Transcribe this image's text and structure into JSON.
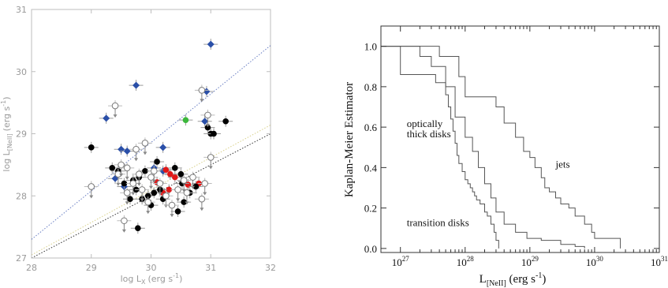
{
  "chart_data": [
    {
      "type": "scatter",
      "title": "",
      "xlabel_main": "log L",
      "xlabel_sub": "X",
      "xlabel_unit": "(erg s",
      "xlabel_exp": "-1",
      "xlabel_close": ")",
      "ylabel_main": "log L",
      "ylabel_sub": "[NeII]",
      "ylabel_unit": "(erg s",
      "ylabel_exp": "-1",
      "ylabel_close": ")",
      "xlim": [
        28,
        32
      ],
      "ylim": [
        27,
        31
      ],
      "x_ticks": [
        "28",
        "29",
        "30",
        "31",
        "32"
      ],
      "y_ticks": [
        "27",
        "28",
        "29",
        "30",
        "31"
      ],
      "colors": {
        "blue": "#2a4fa8",
        "red": "#e01818",
        "green": "#3cb83c",
        "black": "#000000",
        "open": "#7a7a7a",
        "fit_blue": "#6a7fc4",
        "fit_yellow": "#d8d08a",
        "fit_black": "#333333"
      },
      "fit_lines": [
        {
          "color": "fit_blue",
          "x": [
            28,
            32
          ],
          "y": [
            27.3,
            30.42
          ]
        },
        {
          "color": "fit_yellow",
          "x": [
            28,
            32
          ],
          "y": [
            27.05,
            29.14
          ]
        },
        {
          "color": "fit_black",
          "x": [
            28,
            32
          ],
          "y": [
            27.0,
            29.0
          ]
        }
      ],
      "series": [
        {
          "marker": "diamond",
          "color": "blue",
          "x": [
            31.0,
            29.75,
            29.25,
            29.5,
            29.6,
            30.2,
            29.4,
            29.55,
            30.05,
            30.2,
            30.9,
            30.93
          ],
          "y": [
            30.44,
            29.78,
            29.25,
            28.75,
            28.72,
            28.78,
            28.28,
            28.15,
            28.45,
            28.4,
            29.2,
            29.68
          ]
        },
        {
          "marker": "circle",
          "color": "green",
          "x": [
            30.58
          ],
          "y": [
            29.22
          ]
        },
        {
          "marker": "circle",
          "color": "red",
          "x": [
            30.1,
            30.25,
            30.32,
            30.3,
            30.2,
            30.4,
            30.62,
            30.8
          ],
          "y": [
            28.22,
            28.42,
            28.35,
            28.1,
            28.05,
            28.3,
            28.18,
            28.2
          ]
        },
        {
          "marker": "circle",
          "color": "black",
          "x": [
            29.0,
            29.35,
            29.45,
            29.55,
            29.65,
            29.7,
            29.75,
            29.8,
            29.85,
            29.9,
            29.95,
            30.0,
            30.05,
            30.1,
            30.15,
            30.2,
            30.4,
            30.5,
            30.52,
            30.55,
            30.65,
            30.75,
            30.95,
            31.0,
            31.05,
            31.25,
            29.78,
            30.45
          ],
          "y": [
            28.78,
            28.45,
            28.4,
            28.2,
            27.95,
            28.25,
            28.1,
            28.3,
            27.95,
            28.4,
            28.0,
            27.85,
            28.05,
            28.55,
            28.1,
            27.95,
            28.45,
            28.35,
            28.2,
            27.9,
            28.05,
            28.15,
            29.1,
            29.0,
            29.0,
            29.2,
            27.48,
            27.75
          ]
        },
        {
          "marker": "open-circle",
          "color": "open",
          "x": [
            29.0,
            29.45,
            29.55,
            29.6,
            29.7,
            29.8,
            29.85,
            29.9,
            29.95,
            30.05,
            30.15,
            30.25,
            30.35,
            30.45,
            30.55,
            30.7,
            30.85,
            30.95,
            31.0,
            29.4,
            29.5,
            29.6,
            29.75,
            30.0,
            30.6,
            30.85,
            30.9
          ],
          "y": [
            28.15,
            28.35,
            27.6,
            28.05,
            28.2,
            28.35,
            28.1,
            28.85,
            27.9,
            28.4,
            28.2,
            28.0,
            27.85,
            28.1,
            28.25,
            28.3,
            27.95,
            29.3,
            28.62,
            29.45,
            28.5,
            28.45,
            28.75,
            28.3,
            28.05,
            29.7,
            28.2
          ]
        }
      ]
    },
    {
      "type": "line",
      "title": "",
      "ylabel": "Kaplan-Meier Estimator",
      "xlabel_main": "L",
      "xlabel_sub": "[NeII]",
      "xlabel_unit": " (erg s",
      "xlabel_exp": "-1",
      "xlabel_close": ")",
      "x_scale": "log",
      "xlim": [
        5e+26,
        1e+31
      ],
      "ylim": [
        -0.02,
        1.1
      ],
      "x_ticks": [
        {
          "base": "10",
          "exp": "27",
          "value": 1e+27
        },
        {
          "base": "10",
          "exp": "28",
          "value": 1e+28
        },
        {
          "base": "10",
          "exp": "29",
          "value": 1e+29
        },
        {
          "base": "10",
          "exp": "30",
          "value": 1e+30
        },
        {
          "base": "10",
          "exp": "31",
          "value": 1e+31
        }
      ],
      "y_ticks": [
        "0.0",
        "0.2",
        "0.4",
        "0.6",
        "0.8",
        "1.0"
      ],
      "y_tick_values": [
        0,
        0.2,
        0.4,
        0.6,
        0.8,
        1.0
      ],
      "annotations": [
        {
          "text": "optically",
          "x": 1e+27,
          "y": 0.6
        },
        {
          "text": "thick disks",
          "x": 1e+27,
          "y": 0.55
        },
        {
          "text": "jets",
          "x": 2e+29,
          "y": 0.4
        },
        {
          "text": "transition disks",
          "x": 1e+27,
          "y": 0.11
        }
      ],
      "series": [
        {
          "name": "optically thick disks",
          "x": [
            5e+26,
            1e+27,
            3e+27,
            3.5e+27,
            5e+27,
            5.5e+27,
            6e+27,
            6.5e+27,
            7e+27,
            7.5e+27,
            8e+27,
            9e+27,
            1e+28,
            1.1e+28,
            1.2e+28,
            1.3e+28,
            1.4e+28,
            1.5e+28,
            1.7e+28,
            2e+28,
            2.2e+28,
            2.5e+28,
            2.8e+28,
            3e+28,
            3.3e+28
          ],
          "y": [
            1.0,
            0.86,
            0.86,
            0.82,
            0.76,
            0.7,
            0.64,
            0.58,
            0.52,
            0.46,
            0.42,
            0.38,
            0.34,
            0.32,
            0.3,
            0.28,
            0.26,
            0.24,
            0.22,
            0.18,
            0.16,
            0.12,
            0.08,
            0.04,
            0.0
          ]
        },
        {
          "name": "transition disks",
          "x": [
            5e+26,
            2e+27,
            3e+27,
            5e+27,
            7e+27,
            1e+28,
            1.3e+28,
            1.6e+28,
            2e+28,
            2.5e+28,
            3e+28,
            4e+28,
            6e+28,
            9e+28,
            1.5e+29,
            3e+29,
            5e+29,
            7e+29
          ],
          "y": [
            1.0,
            0.95,
            0.9,
            0.8,
            0.65,
            0.55,
            0.48,
            0.4,
            0.32,
            0.25,
            0.18,
            0.12,
            0.08,
            0.05,
            0.04,
            0.02,
            0.01,
            0.0
          ]
        },
        {
          "name": "jets",
          "x": [
            5e+26,
            3e+27,
            4e+27,
            8e+27,
            1e+28,
            3e+28,
            4e+28,
            6e+28,
            8e+28,
            1e+29,
            1.2e+29,
            1.5e+29,
            1.7e+29,
            2e+29,
            2.5e+29,
            3e+29,
            4e+29,
            5e+29,
            7e+29,
            9e+29,
            1e+30,
            2.5e+30
          ],
          "y": [
            1.0,
            1.0,
            0.95,
            0.85,
            0.75,
            0.7,
            0.62,
            0.55,
            0.48,
            0.45,
            0.4,
            0.35,
            0.3,
            0.28,
            0.25,
            0.22,
            0.2,
            0.16,
            0.12,
            0.08,
            0.05,
            0.0
          ]
        }
      ]
    }
  ]
}
